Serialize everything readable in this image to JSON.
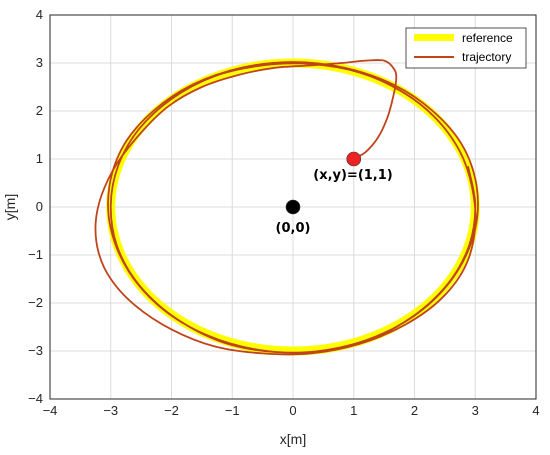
{
  "chart_data": {
    "type": "line",
    "xlabel": "x[m]",
    "ylabel": "y[m]",
    "xlim": [
      -4,
      4
    ],
    "ylim": [
      -4,
      4
    ],
    "xticks": [
      "−4",
      "−3",
      "−2",
      "−1",
      "0",
      "1",
      "2",
      "3",
      "4"
    ],
    "yticks": [
      "4",
      "3",
      "2",
      "1",
      "0",
      "−1",
      "−2",
      "−3",
      "−4"
    ],
    "grid": true,
    "legend_position": "top-right",
    "series": [
      {
        "name": "reference",
        "color": "#ffff00",
        "shape": "circle",
        "center": [
          0,
          0
        ],
        "radius": 3
      },
      {
        "name": "trajectory",
        "color": "#c0441a",
        "points": [
          [
            1,
            1
          ],
          [
            1.2,
            1.15
          ],
          [
            1.4,
            1.45
          ],
          [
            1.55,
            1.85
          ],
          [
            1.65,
            2.3
          ],
          [
            1.7,
            2.7
          ],
          [
            1.65,
            2.9
          ],
          [
            1.5,
            3.05
          ],
          [
            1.2,
            3.05
          ],
          [
            0.8,
            3.0
          ],
          [
            0.3,
            2.95
          ],
          [
            -0.3,
            2.9
          ],
          [
            -0.9,
            2.75
          ],
          [
            -1.5,
            2.5
          ],
          [
            -2.05,
            2.1
          ],
          [
            -2.5,
            1.55
          ],
          [
            -2.9,
            0.9
          ],
          [
            -3.15,
            0.25
          ],
          [
            -3.25,
            -0.35
          ],
          [
            -3.2,
            -0.95
          ],
          [
            -3.0,
            -1.5
          ],
          [
            -2.6,
            -2.05
          ],
          [
            -2.0,
            -2.55
          ],
          [
            -1.3,
            -2.9
          ],
          [
            -0.5,
            -3.05
          ],
          [
            0.3,
            -3.05
          ],
          [
            1.1,
            -2.85
          ],
          [
            1.85,
            -2.45
          ],
          [
            2.45,
            -1.9
          ],
          [
            2.85,
            -1.2
          ],
          [
            3.0,
            -0.4
          ],
          [
            2.95,
            0.4
          ],
          [
            2.75,
            1.15
          ],
          [
            2.35,
            1.85
          ],
          [
            1.8,
            2.4
          ],
          [
            1.1,
            2.8
          ],
          [
            0.3,
            2.98
          ],
          [
            -0.5,
            2.95
          ],
          [
            -1.3,
            2.72
          ],
          [
            -2.0,
            2.25
          ],
          [
            -2.55,
            1.6
          ],
          [
            -2.88,
            0.85
          ],
          [
            -3.0,
            0.05
          ],
          [
            -2.9,
            -0.8
          ],
          [
            -2.55,
            -1.6
          ],
          [
            -1.95,
            -2.3
          ],
          [
            -1.15,
            -2.82
          ],
          [
            -0.3,
            -3.02
          ],
          [
            0.55,
            -2.98
          ],
          [
            1.4,
            -2.68
          ],
          [
            2.15,
            -2.12
          ],
          [
            2.7,
            -1.35
          ],
          [
            3.0,
            -0.45
          ],
          [
            3.02,
            0.45
          ],
          [
            2.78,
            1.3
          ],
          [
            2.3,
            2.0
          ],
          [
            1.65,
            2.55
          ],
          [
            0.85,
            2.9
          ],
          [
            0.0,
            3.02
          ],
          [
            -0.85,
            2.9
          ],
          [
            -1.65,
            2.55
          ],
          [
            -2.3,
            2.0
          ],
          [
            -2.78,
            1.3
          ],
          [
            -3.02,
            0.45
          ],
          [
            -3.0,
            -0.45
          ],
          [
            -2.7,
            -1.35
          ],
          [
            -2.15,
            -2.12
          ],
          [
            -1.4,
            -2.68
          ],
          [
            -0.55,
            -2.98
          ],
          [
            0.3,
            -3.02
          ],
          [
            1.15,
            -2.82
          ],
          [
            1.95,
            -2.3
          ],
          [
            2.55,
            -1.6
          ],
          [
            2.9,
            -0.8
          ],
          [
            3.0,
            0.05
          ],
          [
            2.88,
            0.85
          ]
        ]
      }
    ],
    "annotations": [
      {
        "label": "(x,y)=(1,1)",
        "point": [
          1,
          1
        ],
        "color": "#ee2222"
      },
      {
        "label": "(0,0)",
        "point": [
          0,
          0
        ],
        "color": "#000000"
      }
    ]
  }
}
